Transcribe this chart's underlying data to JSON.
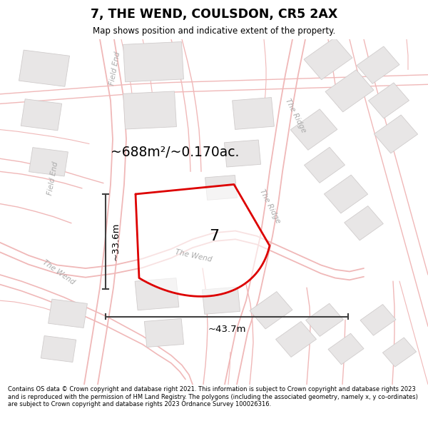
{
  "title": "7, THE WEND, COULSDON, CR5 2AX",
  "subtitle": "Map shows position and indicative extent of the property.",
  "area_text": "~688m²/~0.170ac.",
  "dim_h": "~33.6m",
  "dim_w": "~43.7m",
  "label_7": "7",
  "footer": "Contains OS data © Crown copyright and database right 2021. This information is subject to Crown copyright and database rights 2023 and is reproduced with the permission of HM Land Registry. The polygons (including the associated geometry, namely x, y co-ordinates) are subject to Crown copyright and database rights 2023 Ordnance Survey 100026316.",
  "map_bg": "#f7f6f6",
  "road_color": "#f0b8b8",
  "building_color": "#e8e6e6",
  "building_edge": "#d0cccc",
  "plot_outline_color": "#dd0000",
  "measurement_color": "#404040",
  "title_color": "#000000",
  "footer_color": "#000000",
  "street_label_color": "#aaaaaa"
}
